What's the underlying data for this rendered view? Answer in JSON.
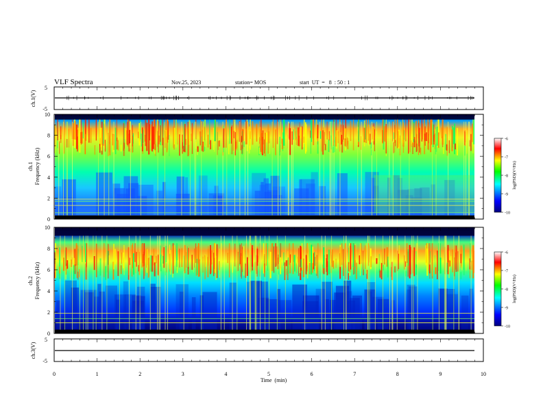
{
  "header": {
    "title": "VLF Spectra",
    "date": "Nov.25, 2023",
    "station": "station= MOS",
    "start": "start  UT  =   8  : 50 : 1"
  },
  "chart_data": [
    {
      "id": "ch1-waveform",
      "type": "line",
      "ylabel": "ch.1(V)",
      "ylim": [
        -5,
        5
      ],
      "y_ticks": [
        "5",
        "-5"
      ],
      "baseline": 0,
      "xlim": [
        0,
        10
      ]
    },
    {
      "id": "ch1-spectrogram",
      "type": "heatmap",
      "ylabel_line1": "ch.1",
      "ylabel_line2": "Frequency (kHz)",
      "ylim": [
        0,
        10
      ],
      "y_ticks": [
        0,
        2,
        4,
        6,
        8,
        10
      ],
      "xlim": [
        0,
        10
      ],
      "colorbar": {
        "label": "log(PSD)(V²/Hz)",
        "ticks": [
          "-6",
          "-7",
          "-8",
          "-9",
          "-10"
        ],
        "range": [
          -10,
          -6
        ],
        "colormap": [
          "#00007f",
          "#0000ff",
          "#00ffff",
          "#00ff00",
          "#ffff00",
          "#ff0000",
          "#ffffff"
        ]
      },
      "features": {
        "intense_band_khz": [
          6,
          9.5
        ],
        "dark_band_top_khz": [
          9.5,
          10
        ],
        "step_change_min": 7.45,
        "horizontal_lines_khz": [
          0.6,
          1.3,
          1.7,
          1.9
        ]
      }
    },
    {
      "id": "ch2-spectrogram",
      "type": "heatmap",
      "ylabel_line1": "ch.2",
      "ylabel_line2": "Frequency (kHz)",
      "ylim": [
        0,
        10
      ],
      "y_ticks": [
        0,
        2,
        4,
        6,
        8,
        10
      ],
      "xlim": [
        0,
        10
      ],
      "colorbar": {
        "label": "log(PSD)(V²/Hz)",
        "ticks": [
          "-6",
          "-7",
          "-8",
          "-9",
          "-10"
        ],
        "range": [
          -10,
          -6
        ],
        "colormap": [
          "#00007f",
          "#0000ff",
          "#00ffff",
          "#00ff00",
          "#ffff00",
          "#ff0000",
          "#ffffff"
        ]
      },
      "features": {
        "intense_band_khz": [
          5,
          8.5
        ],
        "dark_band_top_khz": [
          9.2,
          10
        ],
        "horizontal_lines_khz": [
          0.3,
          1.0,
          1.4,
          1.9
        ]
      }
    },
    {
      "id": "ch3-waveform",
      "type": "line",
      "ylabel": "ch.3(V)",
      "ylim": [
        -5,
        5
      ],
      "y_ticks": [
        "5",
        "-5"
      ],
      "baseline": 0,
      "xlim": [
        0,
        10
      ]
    }
  ],
  "x_axis": {
    "label": "Time  (min)",
    "ticks": [
      "0",
      "1",
      "2",
      "3",
      "4",
      "5",
      "6",
      "7",
      "8",
      "9",
      "10"
    ],
    "range": [
      0,
      10
    ]
  }
}
